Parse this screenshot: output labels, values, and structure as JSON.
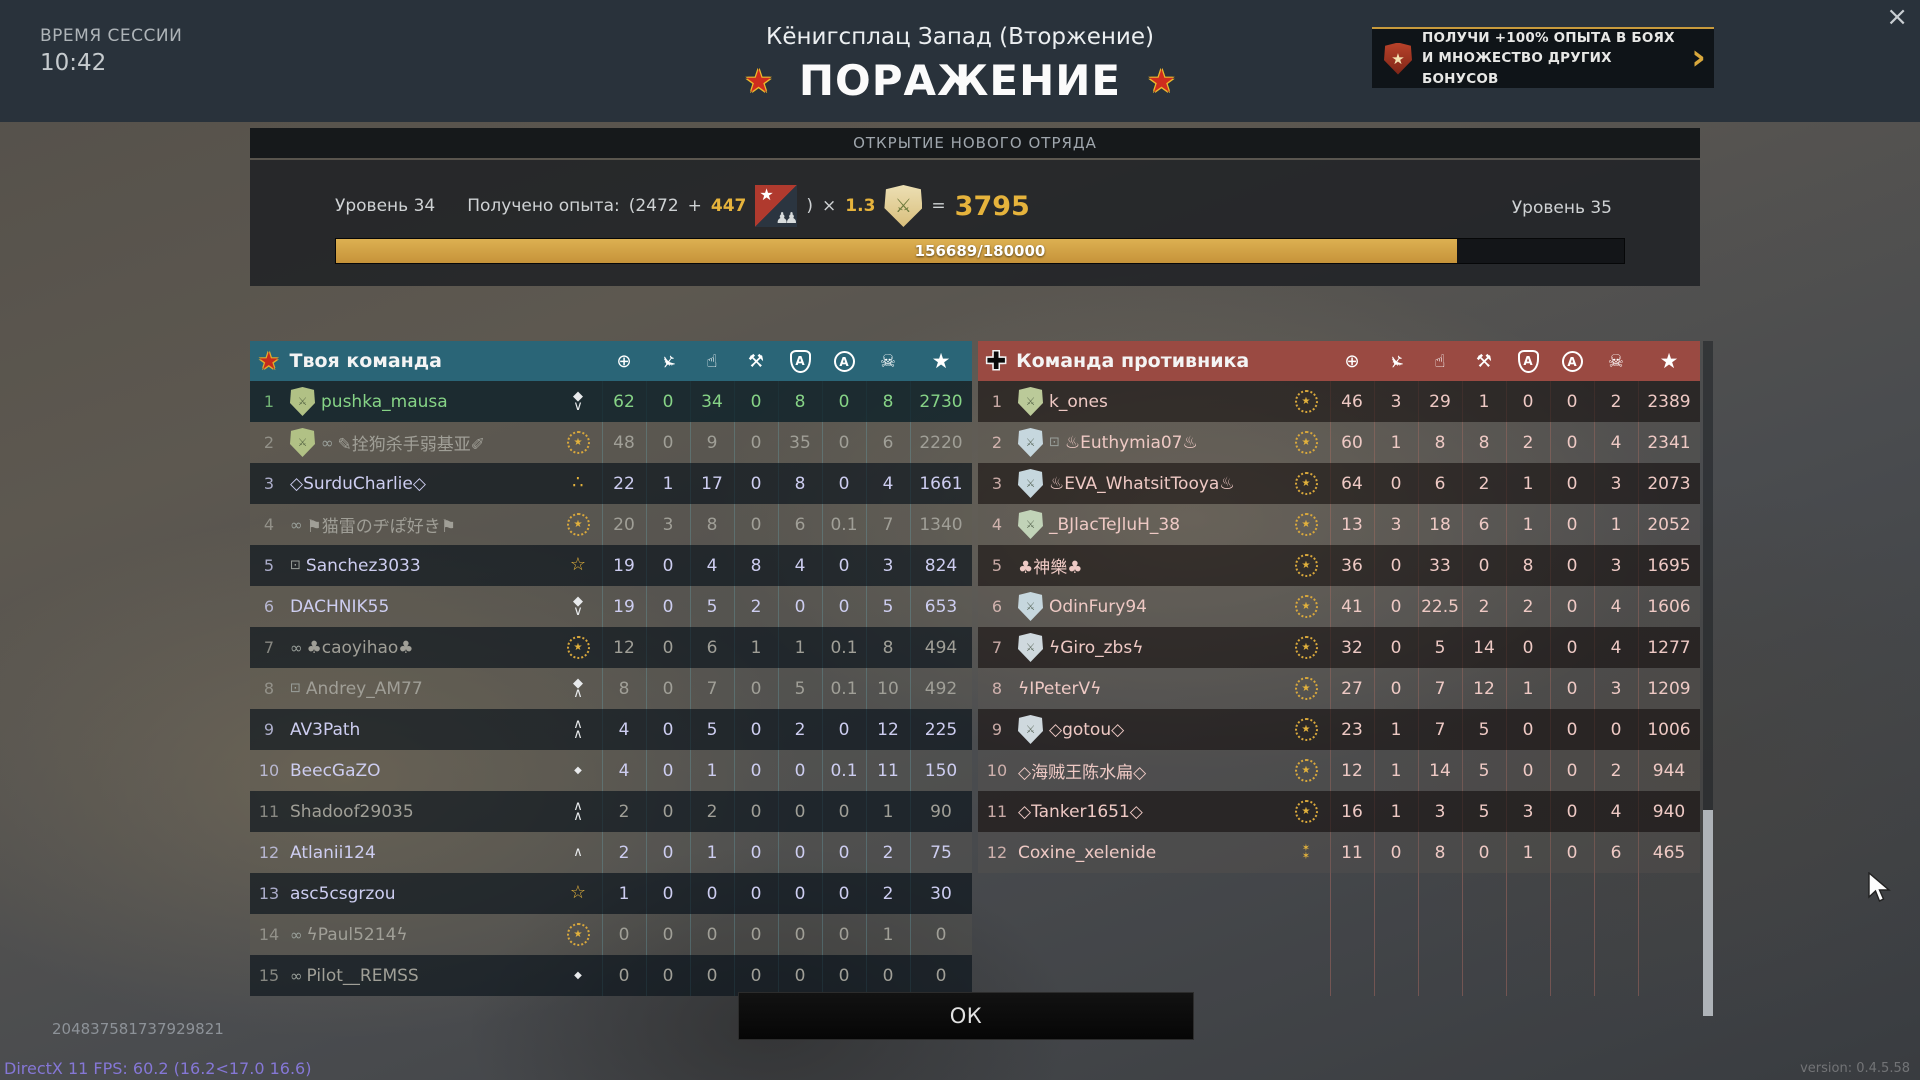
{
  "session": {
    "label": "ВРЕМЯ СЕССИИ",
    "time": "10:42"
  },
  "header": {
    "map_title": "Кёнигсплац Запад (Вторжение)",
    "result": "ПОРАЖЕНИЕ",
    "star_icon": "★",
    "close_icon": "×"
  },
  "promo": {
    "line1": "ПОЛУЧИ +100% ОПЫТА В БОЯХ",
    "line2": "И МНОЖЕСТВО ДРУГИХ БОНУСОВ",
    "shield_star": "★",
    "chevron": "›"
  },
  "squad_unlock": {
    "title": "ОТКРЫТИЕ НОВОГО ОТРЯДА"
  },
  "xp": {
    "level_current": "Уровень 34",
    "level_next": "Уровень 35",
    "earned_label": "Получено опыта:",
    "base_open": "(2472",
    "plus": "+",
    "bonus": "447",
    "close": ")",
    "times": "×",
    "mult": "1.3",
    "equals": "=",
    "total": "3795",
    "progress_text": "156689/180000",
    "progress_pct": 87
  },
  "colors": {
    "accent_gold": "#d9a83c",
    "xp_fill": "#cfa044",
    "ally_header": "#2a6577",
    "enemy_header": "#9a4a42",
    "ally_line": "rgba(110,200,220,0.30)",
    "enemy_line": "rgba(235,130,112,0.30)",
    "self_text": "#86d386",
    "ally_text": "#cdcdf0",
    "dim_text": "#a09f97",
    "enemy_text": "#eec9c4"
  },
  "stat_columns": [
    {
      "name": "frags-icon",
      "glyph": "⊕",
      "type": "plain"
    },
    {
      "name": "air-frags-icon",
      "glyph": "✈",
      "type": "plane"
    },
    {
      "name": "capture-icon",
      "glyph": "☝",
      "type": "plain"
    },
    {
      "name": "repair-icon",
      "glyph": "⚒",
      "type": "plain"
    },
    {
      "name": "shield-assist-icon",
      "glyph": "A",
      "type": "shield"
    },
    {
      "name": "assist-icon",
      "glyph": "A",
      "type": "circle"
    },
    {
      "name": "deaths-icon",
      "glyph": "☠",
      "type": "plain"
    },
    {
      "name": "score-icon",
      "glyph": "★",
      "type": "plain"
    }
  ],
  "medals": {
    "wreath": {
      "wreath": true,
      "parts": [
        "★"
      ],
      "cls": "m-gold"
    },
    "diamond-chevron-down": {
      "wreath": false,
      "parts": [
        "◆",
        "∨"
      ],
      "cls": "m-white"
    },
    "diamond-chevron-up": {
      "wreath": false,
      "parts": [
        "◆",
        "∧"
      ],
      "cls": "m-white"
    },
    "three-stars": {
      "wreath": false,
      "parts": [
        "∴"
      ],
      "cls": "m-gold m-big"
    },
    "star-outline": {
      "wreath": false,
      "parts": [
        "☆"
      ],
      "cls": "m-gold m-big"
    },
    "double-chevron": {
      "wreath": false,
      "parts": [
        "∧",
        "∧"
      ],
      "cls": "m-white"
    },
    "chevron": {
      "wreath": false,
      "parts": [
        "∧"
      ],
      "cls": "m-white"
    },
    "diamond": {
      "wreath": false,
      "parts": [
        "◆"
      ],
      "cls": "m-white m-sm"
    },
    "two-stars": {
      "wreath": false,
      "parts": [
        "✶",
        "✶"
      ],
      "cls": "m-gold m-sm"
    }
  },
  "teams": {
    "ally": {
      "title": "Твоя команда",
      "emblem": "star",
      "players": [
        {
          "num": "1",
          "name": "pushka_mausa",
          "color": "self",
          "emblem": "#b9c98b",
          "medal": "diamond-chevron-down",
          "stats": [
            "62",
            "0",
            "34",
            "0",
            "8",
            "0",
            "8",
            "2730"
          ]
        },
        {
          "num": "2",
          "name": "✎拴狗杀手弱基亚✐",
          "color": "dim",
          "link": true,
          "emblem": "#b9c98b",
          "medal": "wreath",
          "stats": [
            "48",
            "0",
            "9",
            "0",
            "35",
            "0",
            "6",
            "2220"
          ]
        },
        {
          "num": "3",
          "name": "◇SurduCharlie◇",
          "color": "bright",
          "medal": "three-stars",
          "stats": [
            "22",
            "1",
            "17",
            "0",
            "8",
            "0",
            "4",
            "1661"
          ]
        },
        {
          "num": "4",
          "name": "⚑猫雷のヂぽ好き⚑",
          "color": "dim",
          "link": true,
          "medal": "wreath",
          "stats": [
            "20",
            "3",
            "8",
            "0",
            "6",
            "0.1",
            "7",
            "1340"
          ]
        },
        {
          "num": "5",
          "name": "Sanchez3033",
          "color": "bright",
          "pad": true,
          "medal": "star-outline",
          "stats": [
            "19",
            "0",
            "4",
            "8",
            "4",
            "0",
            "3",
            "824"
          ]
        },
        {
          "num": "6",
          "name": "DACHNIK55",
          "color": "bright",
          "medal": "diamond-chevron-down",
          "stats": [
            "19",
            "0",
            "5",
            "2",
            "0",
            "0",
            "5",
            "653"
          ]
        },
        {
          "num": "7",
          "name": "♣caoyihao♣",
          "color": "dim",
          "link": true,
          "medal": "wreath",
          "stats": [
            "12",
            "0",
            "6",
            "1",
            "1",
            "0.1",
            "8",
            "494"
          ]
        },
        {
          "num": "8",
          "name": "Andrey_AM77",
          "color": "dim",
          "pad": true,
          "medal": "diamond-chevron-up",
          "stats": [
            "8",
            "0",
            "7",
            "0",
            "5",
            "0.1",
            "10",
            "492"
          ]
        },
        {
          "num": "9",
          "name": "AV3Path",
          "color": "bright",
          "medal": "double-chevron",
          "stats": [
            "4",
            "0",
            "5",
            "0",
            "2",
            "0",
            "12",
            "225"
          ]
        },
        {
          "num": "10",
          "name": "BeecGaZO",
          "color": "bright",
          "medal": "diamond",
          "stats": [
            "4",
            "0",
            "1",
            "0",
            "0",
            "0.1",
            "11",
            "150"
          ]
        },
        {
          "num": "11",
          "name": "Shadoof29035",
          "color": "dim",
          "medal": "double-chevron",
          "stats": [
            "2",
            "0",
            "2",
            "0",
            "0",
            "0",
            "1",
            "90"
          ]
        },
        {
          "num": "12",
          "name": "Atlanii124",
          "color": "bright",
          "medal": "chevron",
          "stats": [
            "2",
            "0",
            "1",
            "0",
            "0",
            "0",
            "2",
            "75"
          ]
        },
        {
          "num": "13",
          "name": "asc5csgrzou",
          "color": "bright",
          "medal": "star-outline",
          "stats": [
            "1",
            "0",
            "0",
            "0",
            "0",
            "0",
            "2",
            "30"
          ]
        },
        {
          "num": "14",
          "name": "ϟPaul5214ϟ",
          "color": "dim",
          "link": true,
          "medal": "wreath",
          "stats": [
            "0",
            "0",
            "0",
            "0",
            "0",
            "0",
            "1",
            "0"
          ]
        },
        {
          "num": "15",
          "name": "Pilot__REMSS",
          "color": "dim",
          "link": true,
          "medal": "diamond",
          "stats": [
            "0",
            "0",
            "0",
            "0",
            "0",
            "0",
            "0",
            "0"
          ]
        }
      ]
    },
    "enemy": {
      "title": "Команда противника",
      "emblem": "cross",
      "players": [
        {
          "num": "1",
          "name": "k_ones",
          "color": "enemy",
          "emblem": "#c3d3a0",
          "medal": "wreath",
          "stats": [
            "46",
            "3",
            "29",
            "1",
            "0",
            "0",
            "2",
            "2389"
          ]
        },
        {
          "num": "2",
          "name": "♨Euthymia07♨",
          "color": "enemy",
          "pad": true,
          "emblem": "#cfe0e8",
          "medal": "wreath",
          "stats": [
            "60",
            "1",
            "8",
            "8",
            "2",
            "0",
            "4",
            "2341"
          ]
        },
        {
          "num": "3",
          "name": "♨EVA_WhatsitTooya♨",
          "color": "enemy",
          "emblem": "#cfe0e8",
          "medal": "wreath",
          "stats": [
            "64",
            "0",
            "6",
            "2",
            "1",
            "0",
            "3",
            "2073"
          ]
        },
        {
          "num": "4",
          "name": "_BJlacTeJluH_38",
          "color": "enemy",
          "emblem": "#c9dcc0",
          "medal": "wreath",
          "stats": [
            "13",
            "3",
            "18",
            "6",
            "1",
            "0",
            "1",
            "2052"
          ]
        },
        {
          "num": "5",
          "name": "♣神樂♣",
          "color": "enemy",
          "medal": "wreath",
          "stats": [
            "36",
            "0",
            "33",
            "0",
            "8",
            "0",
            "3",
            "1695"
          ]
        },
        {
          "num": "6",
          "name": "OdinFury94",
          "color": "enemy",
          "emblem": "#cfe0e8",
          "medal": "wreath",
          "stats": [
            "41",
            "0",
            "22.5",
            "2",
            "2",
            "0",
            "4",
            "1606"
          ]
        },
        {
          "num": "7",
          "name": "ϟGiro_zbsϟ",
          "color": "enemy",
          "emblem": "#d8e2e8",
          "medal": "wreath",
          "stats": [
            "32",
            "0",
            "5",
            "14",
            "0",
            "0",
            "4",
            "1277"
          ]
        },
        {
          "num": "8",
          "name": "ϟIPeterVϟ",
          "color": "enemy",
          "medal": "wreath",
          "stats": [
            "27",
            "0",
            "7",
            "12",
            "1",
            "0",
            "3",
            "1209"
          ]
        },
        {
          "num": "9",
          "name": "◇gotou◇",
          "color": "enemy",
          "emblem": "#d8e2e8",
          "medal": "wreath",
          "stats": [
            "23",
            "1",
            "7",
            "5",
            "0",
            "0",
            "0",
            "1006"
          ]
        },
        {
          "num": "10",
          "name": "◇海贼王陈水扁◇",
          "color": "enemy",
          "medal": "wreath",
          "stats": [
            "12",
            "1",
            "14",
            "5",
            "0",
            "0",
            "2",
            "944"
          ]
        },
        {
          "num": "11",
          "name": "◇Tanker1651◇",
          "color": "enemy",
          "medal": "wreath",
          "stats": [
            "16",
            "1",
            "3",
            "5",
            "3",
            "0",
            "4",
            "940"
          ]
        },
        {
          "num": "12",
          "name": "Coxine_xelenide",
          "color": "enemy",
          "medal": "two-stars",
          "stats": [
            "11",
            "0",
            "8",
            "0",
            "1",
            "0",
            "6",
            "465"
          ]
        }
      ]
    }
  },
  "footer": {
    "ok_label": "ОК",
    "debug_id": "204837581737929821",
    "fps": "DirectX 11 FPS: 60.2 (16.2<17.0 16.6)",
    "version": "version: 0.4.5.58"
  }
}
